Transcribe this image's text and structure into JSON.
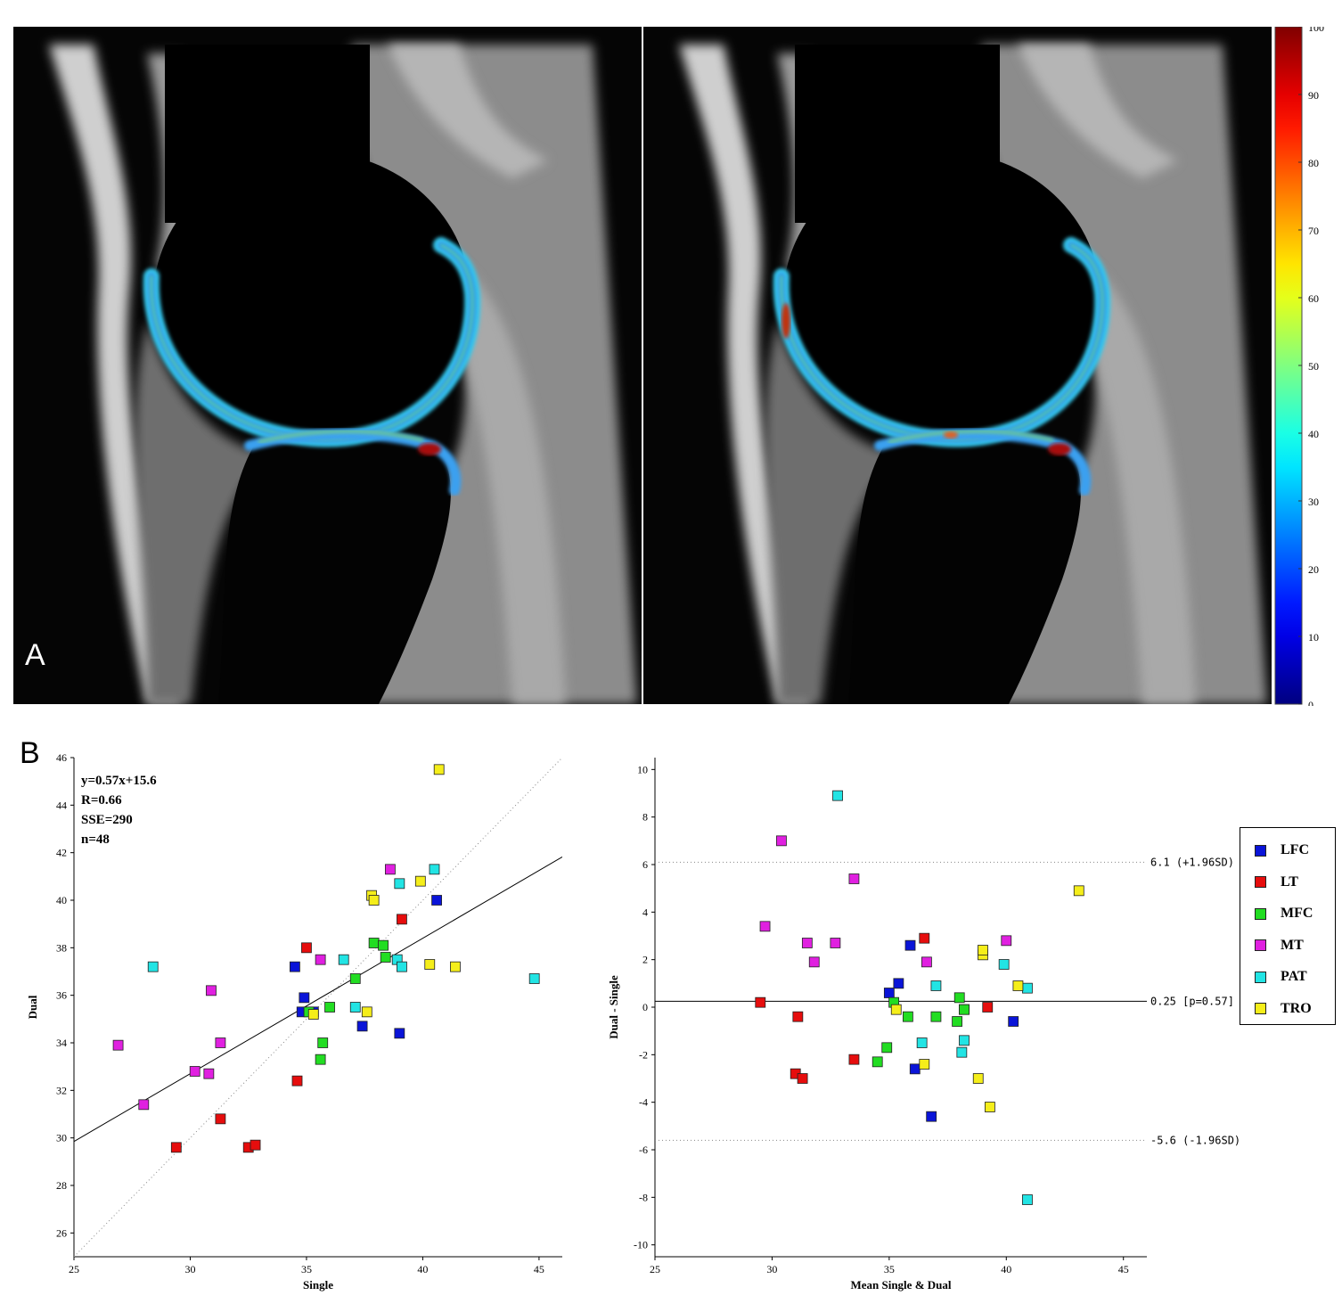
{
  "panel_labels": {
    "a": "A",
    "b": "B"
  },
  "colorbar": {
    "ticks": [
      "100",
      "90",
      "80",
      "70",
      "60",
      "50",
      "40",
      "30",
      "20",
      "10",
      "0"
    ],
    "range": [
      0,
      100
    ],
    "colormap": "jet"
  },
  "mri_images": [
    {
      "name": "single-echo-t2-map-overlay",
      "description_color": "#000000"
    },
    {
      "name": "dual-echo-t2-map-overlay",
      "description_color": "#000000"
    }
  ],
  "groups": [
    {
      "label": "LFC",
      "color": "#0a14d8"
    },
    {
      "label": "LT",
      "color": "#e60d0d"
    },
    {
      "label": "MFC",
      "color": "#22dd22"
    },
    {
      "label": "MT",
      "color": "#e020e0"
    },
    {
      "label": "PAT",
      "color": "#22e4e4"
    },
    {
      "label": "TRO",
      "color": "#f5ee1a"
    }
  ],
  "chart_data": [
    {
      "type": "scatter",
      "xlabel": "Single",
      "ylabel": "Dual",
      "xlim": [
        25,
        46
      ],
      "ylim": [
        25,
        46
      ],
      "xticks": [
        25,
        30,
        35,
        40,
        45
      ],
      "yticks": [
        26,
        28,
        30,
        32,
        34,
        36,
        38,
        40,
        42,
        44,
        46
      ],
      "stats": [
        "y=0.57x+15.6",
        "R=0.66",
        "SSE=290",
        "n=48"
      ],
      "fit_line": {
        "slope": 0.57,
        "intercept": 15.6
      },
      "identity_line": true,
      "series": [
        {
          "name": "LFC",
          "x": [
            34.5,
            34.8,
            34.9,
            35.3,
            37.4,
            39.0,
            40.6
          ],
          "y": [
            37.2,
            35.3,
            35.9,
            35.3,
            34.7,
            34.4,
            40.0
          ]
        },
        {
          "name": "LT",
          "x": [
            29.4,
            31.3,
            32.5,
            32.8,
            34.6,
            35.0,
            39.1
          ],
          "y": [
            29.6,
            30.8,
            29.6,
            29.7,
            32.4,
            38.0,
            39.2
          ]
        },
        {
          "name": "MFC",
          "x": [
            35.1,
            35.6,
            35.7,
            36.0,
            37.1,
            37.9,
            38.3,
            38.4
          ],
          "y": [
            35.3,
            33.3,
            34.0,
            35.5,
            36.7,
            38.2,
            38.1,
            37.6
          ]
        },
        {
          "name": "MT",
          "x": [
            26.9,
            28.0,
            30.2,
            30.8,
            30.9,
            31.3,
            35.6,
            38.6
          ],
          "y": [
            33.9,
            31.4,
            32.8,
            32.7,
            36.2,
            34.0,
            37.5,
            41.3
          ]
        },
        {
          "name": "PAT",
          "x": [
            28.4,
            36.6,
            37.1,
            38.9,
            39.0,
            39.1,
            40.5,
            44.8
          ],
          "y": [
            37.2,
            37.5,
            35.5,
            37.5,
            40.7,
            37.2,
            41.3,
            36.7
          ]
        },
        {
          "name": "TRO",
          "x": [
            35.3,
            37.6,
            37.8,
            37.9,
            39.9,
            40.3,
            40.7,
            41.4
          ],
          "y": [
            35.2,
            35.3,
            40.2,
            40.0,
            40.8,
            37.3,
            45.5,
            37.2
          ]
        }
      ]
    },
    {
      "type": "scatter",
      "xlabel": "Mean Single & Dual",
      "ylabel": "Dual - Single",
      "xlim": [
        25,
        46
      ],
      "ylim": [
        -10.5,
        10.5
      ],
      "xticks": [
        25,
        30,
        35,
        40,
        45
      ],
      "yticks": [
        -10,
        -8,
        -6,
        -4,
        -2,
        0,
        2,
        4,
        6,
        8,
        10
      ],
      "reference_lines": [
        {
          "y": 6.1,
          "label": "6.1 (+1.96SD)",
          "style": "dotted"
        },
        {
          "y": 0.25,
          "label": "0.25 [p=0.57]",
          "style": "solid"
        },
        {
          "y": -5.6,
          "label": "-5.6 (-1.96SD)",
          "style": "dotted"
        }
      ],
      "series": [
        {
          "name": "LFC",
          "x": [
            35.0,
            35.4,
            35.9,
            36.1,
            36.8,
            38.2,
            40.3
          ],
          "y": [
            0.6,
            1.0,
            2.6,
            -2.6,
            -4.6,
            -0.1,
            -0.6
          ]
        },
        {
          "name": "LT",
          "x": [
            29.5,
            31.0,
            31.1,
            31.3,
            33.5,
            36.5,
            39.2
          ],
          "y": [
            0.2,
            -2.8,
            -0.4,
            -3.0,
            -2.2,
            2.9,
            0.0
          ]
        },
        {
          "name": "MFC",
          "x": [
            34.5,
            34.9,
            35.2,
            35.8,
            37.0,
            37.9,
            38.0,
            38.2
          ],
          "y": [
            -2.3,
            -1.7,
            0.2,
            -0.4,
            -0.4,
            -0.6,
            0.4,
            -0.1
          ]
        },
        {
          "name": "MT",
          "x": [
            29.7,
            30.4,
            31.5,
            31.8,
            32.7,
            33.5,
            36.6,
            40.0
          ],
          "y": [
            3.4,
            7.0,
            2.7,
            1.9,
            2.7,
            5.4,
            1.9,
            2.8
          ]
        },
        {
          "name": "PAT",
          "x": [
            32.8,
            36.4,
            37.0,
            38.1,
            38.2,
            39.9,
            40.9,
            40.9
          ],
          "y": [
            8.9,
            -1.5,
            0.9,
            -1.9,
            -1.4,
            1.8,
            0.8,
            -8.1
          ]
        },
        {
          "name": "TRO",
          "x": [
            35.3,
            36.5,
            38.8,
            39.0,
            39.0,
            39.3,
            40.5,
            43.1
          ],
          "y": [
            -0.1,
            -2.4,
            -3.0,
            2.2,
            2.4,
            -4.2,
            0.9,
            4.9
          ]
        }
      ]
    }
  ]
}
